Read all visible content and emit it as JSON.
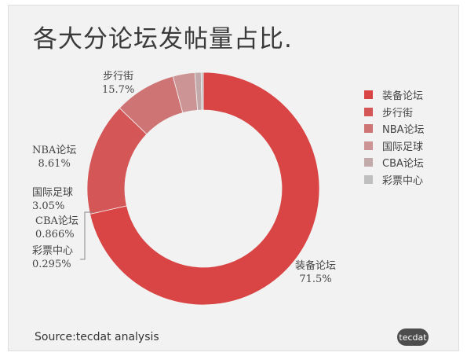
{
  "header": {
    "title": "各大分论坛发帖量占比."
  },
  "source": "Source:tecdat analysis",
  "logo_text": "tecdat",
  "chart_data": {
    "type": "pie",
    "title": "各大分论坛发帖量占比.",
    "donut": true,
    "legend_position": "right",
    "categories": [
      "装备论坛",
      "步行街",
      "NBA论坛",
      "国际足球",
      "CBA论坛",
      "彩票中心"
    ],
    "values": [
      71.5,
      15.7,
      8.61,
      3.05,
      0.866,
      0.295
    ],
    "value_labels": [
      "71.5%",
      "15.7%",
      "8.61%",
      "3.05%",
      "0.866%",
      "0.295%"
    ],
    "colors": [
      "#d94444",
      "#d45656",
      "#cf7474",
      "#cc9494",
      "#c2aaaa",
      "#bfbfbf"
    ]
  }
}
